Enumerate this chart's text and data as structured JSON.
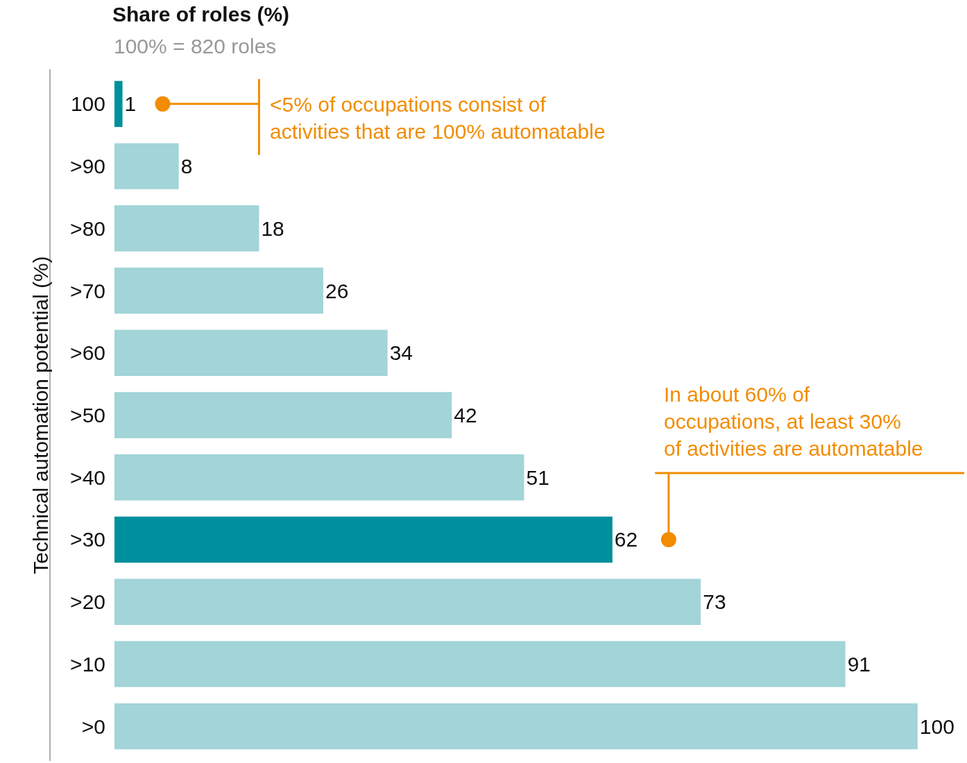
{
  "chart_data": {
    "type": "bar",
    "orientation": "horizontal",
    "title": "Share of roles (%)",
    "subtitle": "100% = 820 roles",
    "ylabel": "Technical automation potential (%)",
    "categories": [
      "100",
      ">90",
      ">80",
      ">70",
      ">60",
      ">50",
      ">40",
      ">30",
      ">20",
      ">10",
      ">0"
    ],
    "values": [
      1,
      8,
      18,
      26,
      34,
      42,
      51,
      62,
      73,
      91,
      100
    ],
    "colors": [
      "#008f9c",
      "#a2d4d8",
      "#a2d4d8",
      "#a2d4d8",
      "#a2d4d8",
      "#a2d4d8",
      "#a2d4d8",
      "#008f9c",
      "#a2d4d8",
      "#a2d4d8",
      "#a2d4d8"
    ],
    "data_labels": true,
    "tick_labels": "y",
    "annotations": [
      {
        "text": "<5% of occupations consist of\nactivities that are 100% automatable",
        "x": 6,
        "y": "100"
      },
      {
        "text": "In about 60% of\noccupations, at least 30%\nof activities are automatable",
        "x": 69,
        "y": ">30"
      }
    ]
  }
}
